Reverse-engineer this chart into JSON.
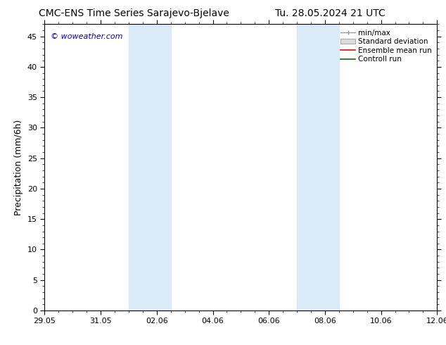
{
  "title_left": "CMC-ENS Time Series Sarajevo-Bjelave",
  "title_right": "Tu. 28.05.2024 21 UTC",
  "ylabel": "Precipitation (mm/6h)",
  "watermark": "© woweather.com",
  "ylim": [
    0,
    47
  ],
  "yticks": [
    0,
    5,
    10,
    15,
    20,
    25,
    30,
    35,
    40,
    45
  ],
  "xtick_labels": [
    "29.05",
    "31.05",
    "02.06",
    "04.06",
    "06.06",
    "08.06",
    "10.06",
    "12.06"
  ],
  "xtick_positions": [
    0,
    2,
    4,
    6,
    8,
    10,
    12,
    14
  ],
  "xlim": [
    0,
    14
  ],
  "shaded_regions": [
    {
      "start": 3.0,
      "end": 4.5
    },
    {
      "start": 9.0,
      "end": 10.5
    }
  ],
  "shaded_color": "#daeaf7",
  "background_color": "#ffffff",
  "plot_bg_color": "#ffffff",
  "border_color": "#000000",
  "title_fontsize": 10,
  "tick_fontsize": 8,
  "ylabel_fontsize": 9,
  "watermark_color": "#0000bb",
  "watermark_fontsize": 8,
  "legend_fontsize": 7.5
}
